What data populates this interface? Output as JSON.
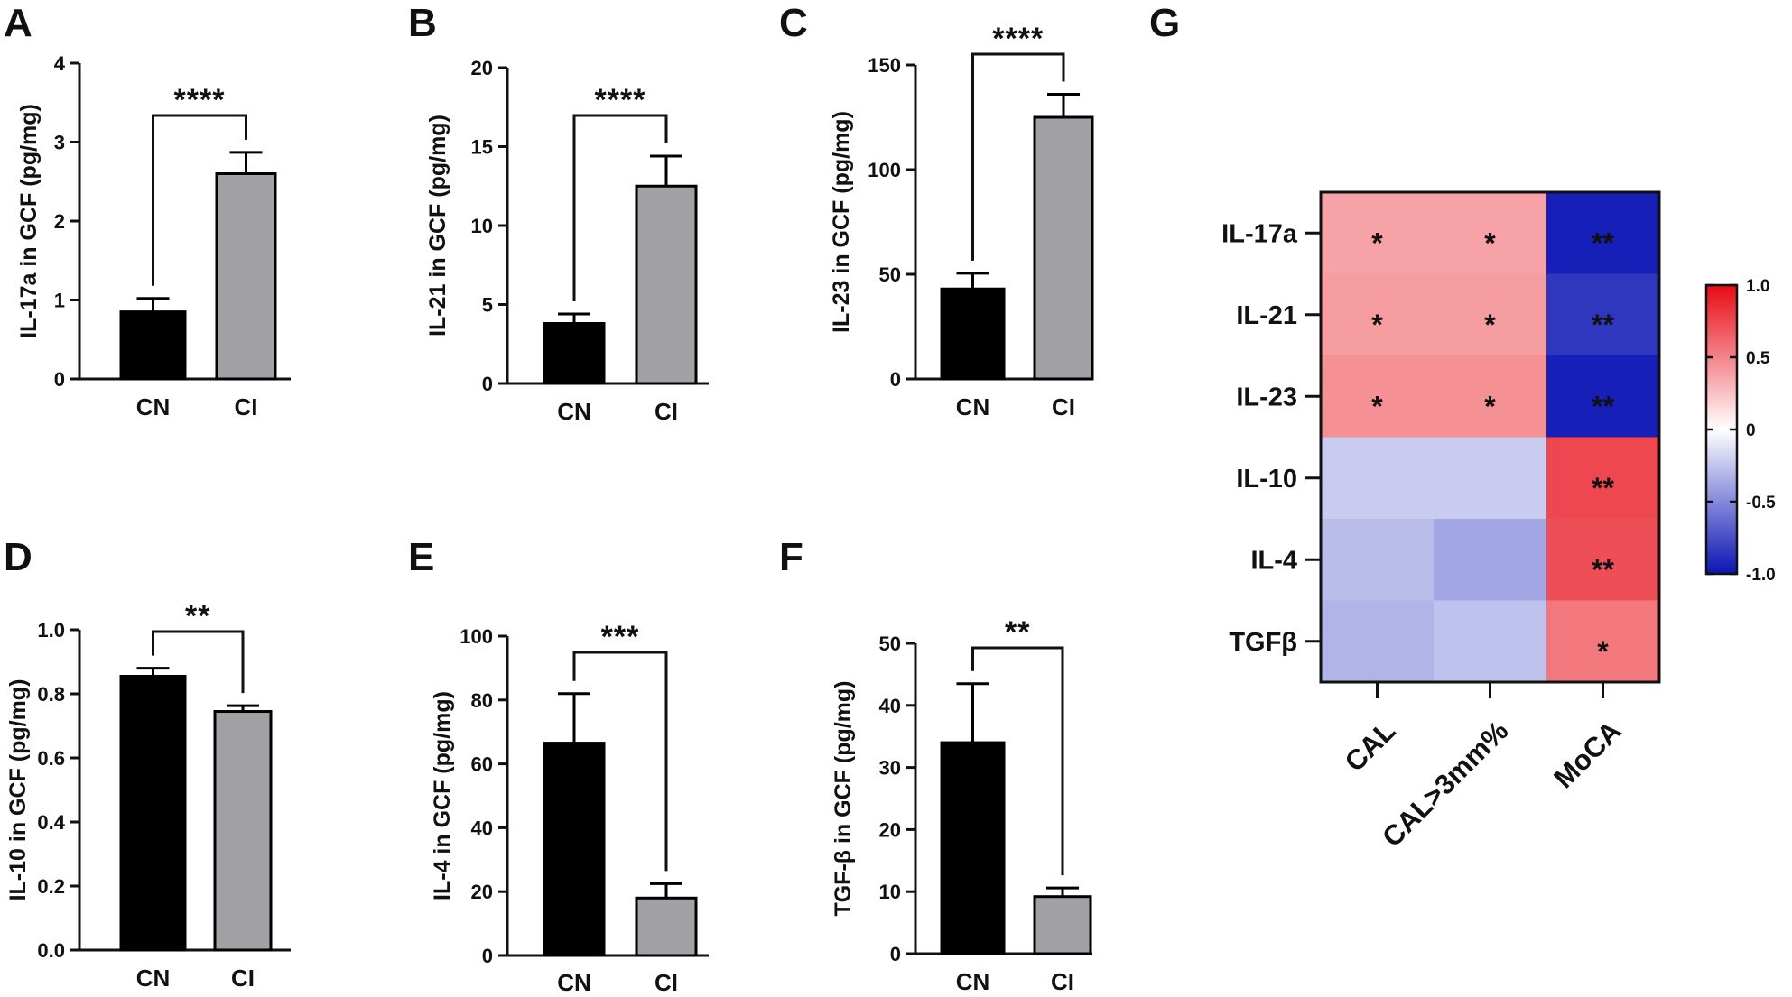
{
  "chart_data": [
    {
      "panel": "A",
      "type": "bar",
      "categories": [
        "CN",
        "CI"
      ],
      "values": [
        0.85,
        2.6
      ],
      "errors": [
        0.17,
        0.27
      ],
      "ylabel": "IL-17a in GCF (pg/mg)",
      "ylim": [
        0,
        4
      ],
      "yticks": [
        "0",
        "1",
        "2",
        "3",
        "4"
      ],
      "bar_colors": [
        "#000000",
        "#a0a0a5"
      ],
      "significance": "****"
    },
    {
      "panel": "B",
      "type": "bar",
      "categories": [
        "CN",
        "CI"
      ],
      "values": [
        3.8,
        12.5
      ],
      "errors": [
        0.6,
        1.9
      ],
      "ylabel": "IL-21 in GCF (pg/mg)",
      "ylim": [
        0,
        20
      ],
      "yticks": [
        "0",
        "5",
        "10",
        "15",
        "20"
      ],
      "bar_colors": [
        "#000000",
        "#a0a0a5"
      ],
      "significance": "****"
    },
    {
      "panel": "C",
      "type": "bar",
      "categories": [
        "CN",
        "CI"
      ],
      "values": [
        43,
        125
      ],
      "errors": [
        7.5,
        11
      ],
      "ylabel": "IL-23 in GCF (pg/mg)",
      "ylim": [
        0,
        150
      ],
      "yticks": [
        "0",
        "50",
        "100",
        "150"
      ],
      "bar_colors": [
        "#000000",
        "#a0a0a5"
      ],
      "significance": "****"
    },
    {
      "panel": "D",
      "type": "bar",
      "categories": [
        "CN",
        "CI"
      ],
      "values": [
        0.855,
        0.745
      ],
      "errors": [
        0.025,
        0.018
      ],
      "ylabel": "IL-10 in GCF (pg/mg)",
      "ylim": [
        0,
        1.0
      ],
      "yticks": [
        "0.0",
        "0.2",
        "0.4",
        "0.6",
        "0.8",
        "1.0"
      ],
      "bar_colors": [
        "#000000",
        "#a0a0a5"
      ],
      "significance": "**"
    },
    {
      "panel": "E",
      "type": "bar",
      "categories": [
        "CN",
        "CI"
      ],
      "values": [
        66.5,
        18
      ],
      "errors": [
        15.5,
        4.5
      ],
      "ylabel": "IL-4 in GCF (pg/mg)",
      "ylim": [
        0,
        100
      ],
      "yticks": [
        "0",
        "20",
        "40",
        "60",
        "80",
        "100"
      ],
      "bar_colors": [
        "#000000",
        "#a0a0a5"
      ],
      "significance": "***"
    },
    {
      "panel": "F",
      "type": "bar",
      "categories": [
        "CN",
        "CI"
      ],
      "values": [
        34,
        9.2
      ],
      "errors": [
        9.5,
        1.4
      ],
      "ylabel": "TGF-β in GCF (pg/mg)",
      "ylim": [
        0,
        50
      ],
      "yticks": [
        "0",
        "10",
        "20",
        "30",
        "40",
        "50"
      ],
      "bar_colors": [
        "#000000",
        "#a0a0a5"
      ],
      "significance": "**"
    },
    {
      "panel": "G",
      "type": "heatmap",
      "rows": [
        "IL-17a",
        "IL-21",
        "IL-23",
        "IL-10",
        "IL-4",
        "TGFβ"
      ],
      "cols": [
        "CAL",
        "CAL>3mm%",
        "MoCA"
      ],
      "values": [
        [
          0.38,
          0.38,
          -0.95
        ],
        [
          0.4,
          0.4,
          -0.85
        ],
        [
          0.45,
          0.45,
          -0.95
        ],
        [
          -0.22,
          -0.22,
          0.75
        ],
        [
          -0.28,
          -0.38,
          0.72
        ],
        [
          -0.32,
          -0.26,
          0.55
        ]
      ],
      "stars": [
        [
          "*",
          "*",
          "**"
        ],
        [
          "*",
          "*",
          "**"
        ],
        [
          "*",
          "*",
          "**"
        ],
        [
          "",
          "",
          "**"
        ],
        [
          "",
          "",
          "**"
        ],
        [
          "",
          "",
          "*"
        ]
      ],
      "colorbar": {
        "range": [
          -1.0,
          1.0
        ],
        "ticks": [
          "1.0",
          "0.5",
          "0",
          "-0.5",
          "-1.0"
        ],
        "low_color": "#0a14b4",
        "mid_color": "#ffffff",
        "high_color": "#e80a14"
      }
    }
  ]
}
